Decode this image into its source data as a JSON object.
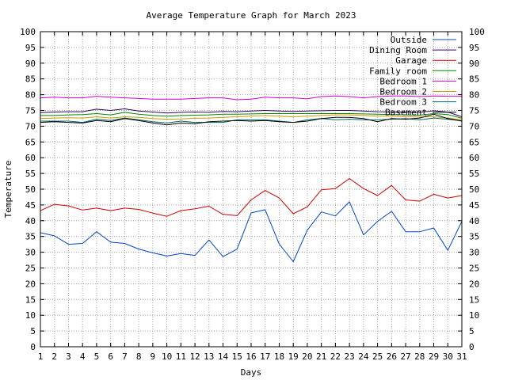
{
  "chart_data": {
    "type": "line",
    "title": "Average Temperature Graph for March 2023",
    "xlabel": "Days",
    "ylabel": "Temperature",
    "xlim": [
      1,
      31
    ],
    "ylim": [
      0,
      100
    ],
    "x_ticks": [
      1,
      2,
      3,
      4,
      5,
      6,
      7,
      8,
      9,
      10,
      11,
      12,
      13,
      14,
      15,
      16,
      17,
      18,
      19,
      20,
      21,
      22,
      23,
      24,
      25,
      26,
      27,
      28,
      29,
      30,
      31
    ],
    "y_ticks": [
      0,
      5,
      10,
      15,
      20,
      25,
      30,
      35,
      40,
      45,
      50,
      55,
      60,
      65,
      70,
      75,
      80,
      85,
      90,
      95,
      100
    ],
    "grid": true,
    "legend_position": "top-right",
    "x": [
      1,
      2,
      3,
      4,
      5,
      6,
      7,
      8,
      9,
      10,
      11,
      12,
      13,
      14,
      15,
      16,
      17,
      18,
      19,
      20,
      21,
      22,
      23,
      24,
      25,
      26,
      27,
      28,
      29,
      30,
      31
    ],
    "series": [
      {
        "name": "Outside",
        "color": "#0044cc",
        "values": [
          36.2,
          35.2,
          32.5,
          32.8,
          36.5,
          33.2,
          32.8,
          31,
          29.8,
          28.8,
          29.6,
          29,
          33.9,
          28.6,
          31,
          42.5,
          43.5,
          32.6,
          27,
          37,
          42.8,
          41.5,
          46,
          35.5,
          39.8,
          43,
          36.5,
          36.5,
          37.7,
          30.6,
          39.8
        ]
      },
      {
        "name": "Dining Room",
        "color": "#330066",
        "values": [
          74.3,
          74.5,
          74.6,
          74.6,
          75.4,
          75,
          75.5,
          74.8,
          74.5,
          74.2,
          74.4,
          74.5,
          74.4,
          74.7,
          74.6,
          74.8,
          75,
          74.8,
          74.7,
          74.8,
          74.9,
          75,
          75,
          74.8,
          74.6,
          74.5,
          74.5,
          74.4,
          74.9,
          74.5,
          73
        ]
      },
      {
        "name": "Garage",
        "color": "#cc0000",
        "values": [
          43.2,
          45.2,
          44.7,
          43.4,
          44,
          43.2,
          44,
          43.6,
          42.4,
          41.4,
          43.2,
          43.8,
          44.6,
          42,
          41.6,
          46.6,
          49.6,
          47.2,
          42.2,
          44.4,
          49.8,
          50.2,
          53.4,
          50.2,
          48,
          51.2,
          46.6,
          46.2,
          48.4,
          47.2,
          48
        ]
      },
      {
        "name": "Family room",
        "color": "#008800",
        "values": [
          73.4,
          73.4,
          73.6,
          73.7,
          74,
          73.6,
          74.4,
          73.8,
          73.4,
          73.2,
          73.4,
          73.5,
          73.6,
          73.8,
          73.8,
          73.9,
          74,
          74,
          74,
          74,
          74,
          74,
          74,
          73.9,
          73.8,
          73.7,
          73.6,
          73.5,
          74,
          73.7,
          72.5
        ]
      },
      {
        "name": "Bedroom 1",
        "color": "#cc00cc",
        "values": [
          79,
          79.2,
          79,
          79,
          79.5,
          79.2,
          79,
          78.8,
          78.6,
          78.6,
          78.6,
          78.8,
          79,
          79,
          78.4,
          78.6,
          79.2,
          79,
          79,
          78.7,
          79.4,
          79.6,
          79.4,
          79,
          79.4,
          79.6,
          79.6,
          79.4,
          79.6,
          79.5,
          79.5
        ]
      },
      {
        "name": "Bedroom 2",
        "color": "#cc9900",
        "values": [
          72.4,
          72.6,
          72.7,
          72.6,
          73,
          72.6,
          73,
          72.8,
          72.4,
          72.2,
          72.3,
          72.5,
          72.6,
          72.8,
          73,
          73.2,
          73.4,
          73.2,
          73,
          73.2,
          73.4,
          73.6,
          73.6,
          73.4,
          73.2,
          73.2,
          73,
          72.9,
          73,
          72.6,
          72
        ]
      },
      {
        "name": "Bedroom 3",
        "color": "#006666",
        "values": [
          71.6,
          71.6,
          71.6,
          71.2,
          72.2,
          71.8,
          72.6,
          72,
          71.4,
          71,
          71.6,
          71.2,
          71.2,
          71.2,
          72,
          72,
          72,
          71.6,
          71.2,
          72,
          72.4,
          72,
          72.2,
          72,
          72,
          72.2,
          72.4,
          72,
          72.6,
          72.2,
          71.7
        ]
      },
      {
        "name": "Basement",
        "color": "#000000",
        "values": [
          71.2,
          71.4,
          71.2,
          71,
          71.8,
          71.4,
          72.4,
          71.8,
          71,
          70.4,
          71,
          70.8,
          71.4,
          71.6,
          71.8,
          71.6,
          71.8,
          71.4,
          71.2,
          71.6,
          72.4,
          72.8,
          72.8,
          72.4,
          71.4,
          72.4,
          72.2,
          72.6,
          73.8,
          72.4,
          71.6
        ]
      }
    ]
  }
}
